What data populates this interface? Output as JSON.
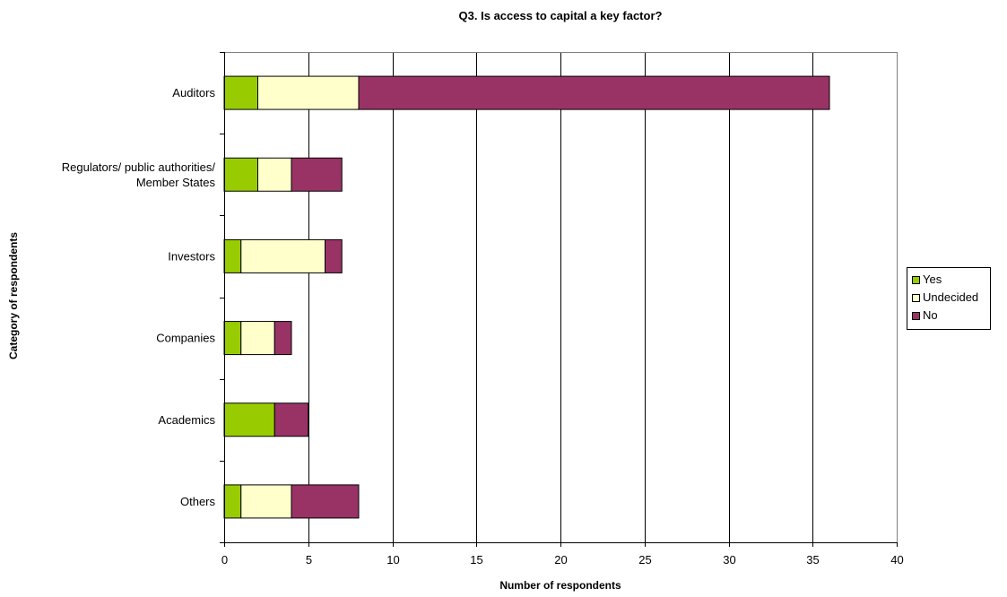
{
  "chart_data": {
    "type": "bar",
    "orientation": "horizontal",
    "stacked": true,
    "title": "Q3. Is access to capital a key factor?",
    "xlabel": "Number of respondents",
    "ylabel": "Category of respondents",
    "xlim": [
      0,
      40
    ],
    "x_ticks": [
      0,
      5,
      10,
      15,
      20,
      25,
      30,
      35,
      40
    ],
    "grid": true,
    "legend_position": "right",
    "categories": [
      [
        "Auditors"
      ],
      [
        "Regulators/ public authorities/",
        "Member States"
      ],
      [
        "Investors"
      ],
      [
        "Companies"
      ],
      [
        "Academics"
      ],
      [
        "Others"
      ]
    ],
    "series": [
      {
        "name": "Yes",
        "color": "#99cc00",
        "values": [
          2,
          2,
          1,
          1,
          3,
          1
        ]
      },
      {
        "name": "Undecided",
        "color": "#ffffcc",
        "values": [
          6,
          2,
          5,
          2,
          0,
          3
        ]
      },
      {
        "name": "No",
        "color": "#993366",
        "values": [
          28,
          3,
          1,
          1,
          2,
          4
        ]
      }
    ]
  }
}
